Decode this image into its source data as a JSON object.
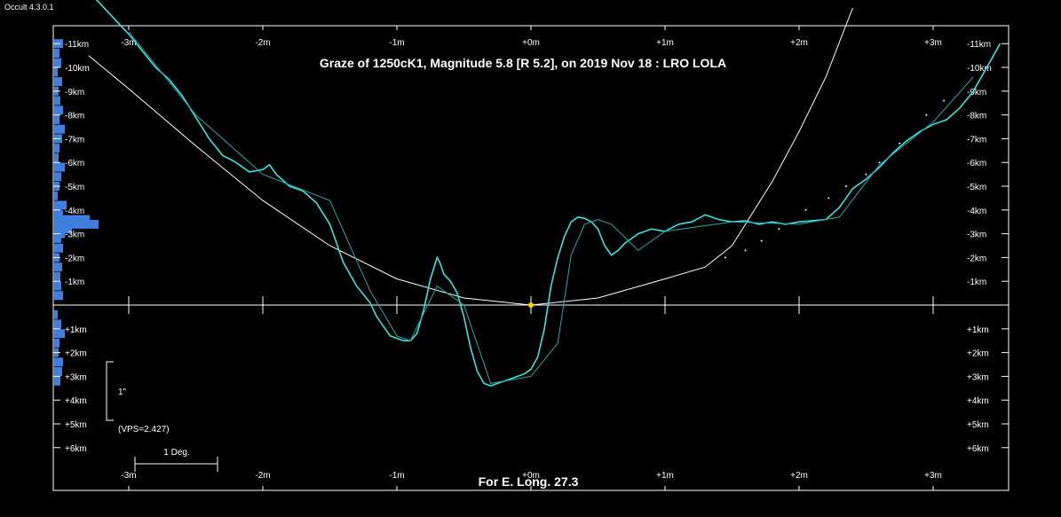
{
  "window": {
    "app_title": "Occult 4.3.0.1"
  },
  "chart_data": {
    "type": "line",
    "title": "Graze of  1250cK1,  Magnitude 5.8 [R 5.2],  on 2019 Nov 18  :  LRO LOLA",
    "footer": "For E. Long. 27.3",
    "xlim": [
      -3.3,
      3.55
    ],
    "ylim": [
      -11.5,
      7.5
    ],
    "x_tick_labels": [
      {
        "x": -3,
        "label": "-3m"
      },
      {
        "x": -2,
        "label": "-2m"
      },
      {
        "x": -1,
        "label": "-1m"
      },
      {
        "x": 0,
        "label": "+0m"
      },
      {
        "x": 1,
        "label": "+1m"
      },
      {
        "x": 2,
        "label": "+2m"
      },
      {
        "x": 3,
        "label": "+3m"
      }
    ],
    "y_tick_labels": [
      {
        "y": -11,
        "label": "-11km"
      },
      {
        "y": -10,
        "label": "-10km"
      },
      {
        "y": -9,
        "label": "-9km"
      },
      {
        "y": -8,
        "label": "-8km"
      },
      {
        "y": -7,
        "label": "-7km"
      },
      {
        "y": -6,
        "label": "-6km"
      },
      {
        "y": -5,
        "label": "-5km"
      },
      {
        "y": -4,
        "label": "-4km"
      },
      {
        "y": -3,
        "label": "-3km"
      },
      {
        "y": -2,
        "label": "-2km"
      },
      {
        "y": -1,
        "label": "-1km"
      },
      {
        "y": 1,
        "label": "+1km"
      },
      {
        "y": 2,
        "label": "+2km"
      },
      {
        "y": 3,
        "label": "+3km"
      },
      {
        "y": 4,
        "label": "+4km"
      },
      {
        "y": 5,
        "label": "+5km"
      },
      {
        "y": 6,
        "label": "+6km"
      }
    ],
    "scale_bar_label": "1\"",
    "vps_label": "(VPS=2.427)",
    "degree_bar_label": "1 Deg.",
    "center_point": {
      "x": 0,
      "y": 0
    },
    "series": [
      {
        "color": "#40e0e0",
        "x": [
          -3.3,
          -3.1,
          -3.0,
          -2.9,
          -2.8,
          -2.7,
          -2.6,
          -2.5,
          -2.4,
          -2.3,
          -2.2,
          -2.1,
          -2.0,
          -1.95,
          -1.9,
          -1.8,
          -1.7,
          -1.6,
          -1.5,
          -1.45,
          -1.4,
          -1.3,
          -1.2,
          -1.15,
          -1.1,
          -1.05,
          -1.0,
          -0.95,
          -0.9,
          -0.85,
          -0.8,
          -0.75,
          -0.7,
          -0.68,
          -0.65,
          -0.6,
          -0.55,
          -0.5,
          -0.45,
          -0.4,
          -0.35,
          -0.3,
          -0.25,
          -0.2,
          -0.15,
          -0.1,
          -0.05,
          0.0,
          0.05,
          0.1,
          0.15,
          0.2,
          0.25,
          0.3,
          0.35,
          0.4,
          0.45,
          0.5,
          0.55,
          0.6,
          0.65,
          0.7,
          0.75,
          0.8,
          0.85,
          0.9,
          1.0,
          1.1,
          1.2,
          1.3,
          1.4,
          1.5,
          1.6,
          1.7,
          1.8,
          1.9,
          2.0,
          2.1,
          2.2,
          2.3,
          2.4,
          2.5,
          2.6,
          2.7,
          2.8,
          2.9,
          3.0,
          3.1,
          3.2,
          3.3,
          3.4,
          3.5
        ],
        "y": [
          -13.2,
          -12.0,
          -11.4,
          -10.7,
          -10.0,
          -9.5,
          -8.8,
          -7.9,
          -7.0,
          -6.3,
          -6.0,
          -5.6,
          -5.7,
          -5.9,
          -5.5,
          -5.0,
          -4.8,
          -4.3,
          -3.4,
          -2.6,
          -1.8,
          -0.8,
          -0.1,
          0.5,
          0.9,
          1.3,
          1.4,
          1.5,
          1.5,
          1.2,
          0.2,
          -1.1,
          -2.0,
          -1.8,
          -1.3,
          -1.0,
          -0.5,
          0.5,
          1.8,
          2.8,
          3.3,
          3.4,
          3.3,
          3.2,
          3.1,
          3.0,
          2.9,
          2.7,
          2.2,
          1.0,
          -0.8,
          -2.0,
          -2.9,
          -3.5,
          -3.7,
          -3.65,
          -3.5,
          -3.2,
          -2.5,
          -2.1,
          -2.3,
          -2.6,
          -2.8,
          -3.0,
          -3.1,
          -3.2,
          -3.1,
          -3.4,
          -3.5,
          -3.8,
          -3.6,
          -3.5,
          -3.55,
          -3.4,
          -3.5,
          -3.4,
          -3.5,
          -3.55,
          -3.6,
          -4.1,
          -4.9,
          -5.3,
          -5.8,
          -6.4,
          -6.9,
          -7.3,
          -7.6,
          -7.8,
          -8.3,
          -9.0,
          -10.0,
          -11.0
        ]
      },
      {
        "color": "#2aa6a6",
        "x": [
          -3.0,
          -2.5,
          -2.0,
          -1.5,
          -1.2,
          -1.0,
          -0.9,
          -0.7,
          -0.5,
          -0.3,
          0.0,
          0.2,
          0.3,
          0.4,
          0.5,
          0.6,
          0.8,
          1.0,
          1.5,
          2.0,
          2.3,
          2.6,
          3.0,
          3.3
        ],
        "y": [
          -11.5,
          -8.0,
          -5.5,
          -4.4,
          -0.6,
          1.3,
          1.5,
          -0.8,
          0.0,
          3.3,
          3.0,
          1.6,
          -2.1,
          -3.4,
          -3.6,
          -3.4,
          -2.3,
          -3.1,
          -3.5,
          -3.4,
          -3.7,
          -5.9,
          -7.7,
          -9.6
        ]
      }
    ],
    "limb_curve": {
      "color": "#ffffff",
      "x": [
        -3.3,
        -3.0,
        -2.5,
        -2.0,
        -1.5,
        -1.0,
        -0.5,
        0.0,
        0.5,
        1.0,
        1.3,
        1.5,
        1.8,
        2.0,
        2.2,
        2.4
      ],
      "y": [
        -10.5,
        -9.1,
        -6.7,
        -4.4,
        -2.5,
        -1.1,
        -0.3,
        0.0,
        -0.3,
        -1.1,
        -1.6,
        -2.5,
        -5.2,
        -7.3,
        -9.6,
        -12.5
      ]
    },
    "star_dots": {
      "color": "#ffffff",
      "x": [
        1.45,
        1.6,
        1.72,
        1.85,
        2.05,
        2.22,
        2.35,
        2.5,
        2.6,
        2.75,
        2.95,
        3.08
      ],
      "y": [
        -2.0,
        -2.3,
        -2.7,
        -3.2,
        -4.0,
        -4.5,
        -5.0,
        -5.5,
        -6.0,
        -6.8,
        -8.0,
        -8.6
      ]
    },
    "profile_histogram": {
      "color": "#3f7fe0",
      "y": [
        -11,
        -10.6,
        -10.2,
        -9.8,
        -9.4,
        -9,
        -8.6,
        -8.2,
        -7.8,
        -7.4,
        -7,
        -6.6,
        -6.2,
        -5.8,
        -5.4,
        -5,
        -4.6,
        -4.2,
        -3.8,
        -3.6,
        -3.4,
        -3.2,
        -3,
        -2.8,
        -2.4,
        -2,
        -1.6,
        -1.2,
        -0.8,
        -0.4,
        0.4,
        0.8,
        1.2,
        1.6,
        2,
        2.4,
        2.8,
        3.2
      ],
      "count": [
        10,
        6,
        8,
        4,
        9,
        5,
        7,
        10,
        6,
        12,
        9,
        6,
        5,
        12,
        8,
        6,
        4,
        14,
        10,
        40,
        50,
        20,
        12,
        8,
        10,
        6,
        9,
        7,
        8,
        10,
        4,
        8,
        12,
        6,
        5,
        10,
        9,
        7
      ]
    }
  }
}
